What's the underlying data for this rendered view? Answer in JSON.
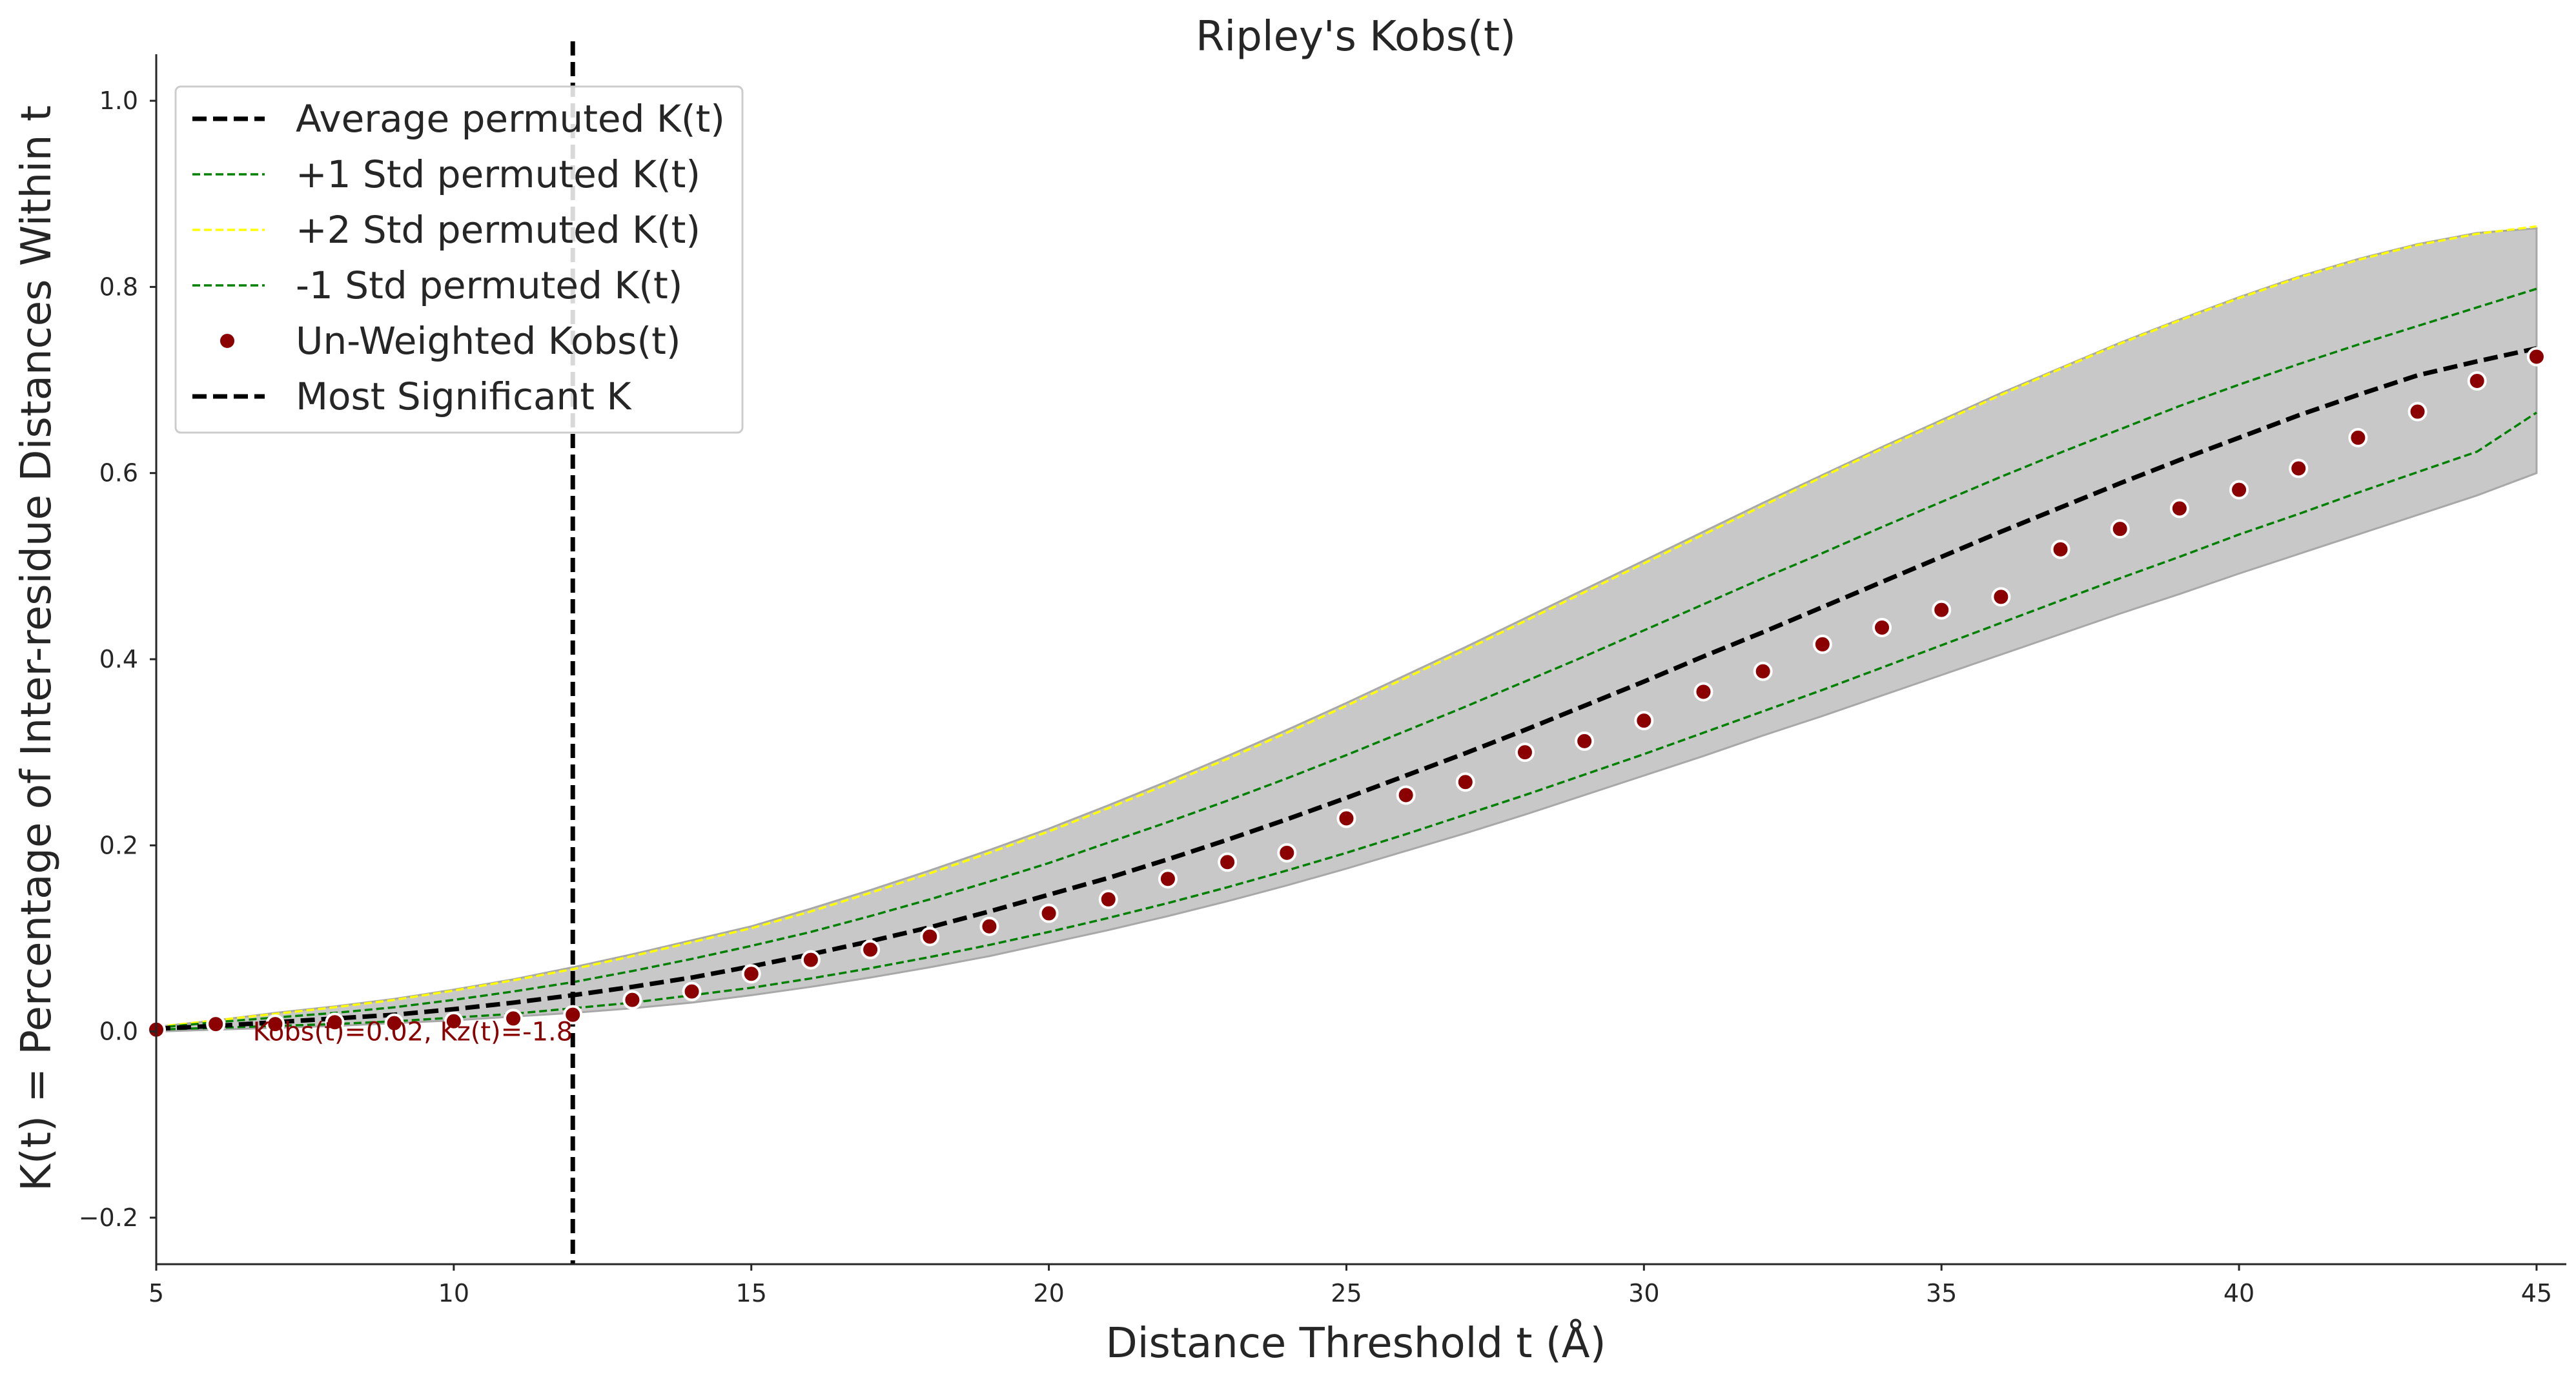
{
  "chart_data": {
    "type": "line",
    "title": "Ripley's Kobs(t)",
    "xlabel": "Distance Threshold t (Å)",
    "ylabel": "K(t) = Percentage of Inter-residue Distances Within t",
    "xlim": [
      5,
      45.5
    ],
    "ylim": [
      -0.25,
      1.05
    ],
    "xticks": [
      5,
      10,
      15,
      20,
      25,
      30,
      35,
      40,
      45
    ],
    "yticks": [
      -0.2,
      0.0,
      0.2,
      0.4,
      0.6,
      0.8,
      1.0
    ],
    "ytick_labels": [
      "−0.2",
      "0.0",
      "0.2",
      "0.4",
      "0.6",
      "0.8",
      "1.0"
    ],
    "grid": false,
    "legend_position": "upper left",
    "x": [
      5,
      6,
      7,
      8,
      9,
      10,
      11,
      12,
      13,
      14,
      15,
      16,
      17,
      18,
      19,
      20,
      21,
      22,
      23,
      24,
      25,
      26,
      27,
      28,
      29,
      30,
      31,
      32,
      33,
      34,
      35,
      36,
      37,
      38,
      39,
      40,
      41,
      42,
      43,
      44,
      45
    ],
    "band": {
      "upper": [
        0.005,
        0.012,
        0.02,
        0.027,
        0.035,
        0.045,
        0.056,
        0.069,
        0.083,
        0.098,
        0.113,
        0.132,
        0.152,
        0.173,
        0.195,
        0.218,
        0.243,
        0.269,
        0.296,
        0.324,
        0.353,
        0.383,
        0.413,
        0.444,
        0.475,
        0.506,
        0.537,
        0.568,
        0.598,
        0.628,
        0.657,
        0.686,
        0.713,
        0.74,
        0.765,
        0.789,
        0.811,
        0.83,
        0.846,
        0.858,
        0.863
      ],
      "lower": [
        0.0,
        0.002,
        0.004,
        0.006,
        0.009,
        0.012,
        0.016,
        0.02,
        0.025,
        0.031,
        0.039,
        0.048,
        0.058,
        0.069,
        0.081,
        0.095,
        0.109,
        0.124,
        0.14,
        0.157,
        0.175,
        0.194,
        0.213,
        0.233,
        0.254,
        0.275,
        0.296,
        0.318,
        0.339,
        0.361,
        0.383,
        0.405,
        0.427,
        0.449,
        0.47,
        0.492,
        0.513,
        0.534,
        0.555,
        0.576,
        0.6
      ]
    },
    "series": [
      {
        "name": "Average permuted K(t)",
        "style": "dashed",
        "color": "#000000",
        "values": [
          0.003,
          0.006,
          0.01,
          0.014,
          0.018,
          0.024,
          0.031,
          0.039,
          0.048,
          0.058,
          0.07,
          0.083,
          0.097,
          0.112,
          0.129,
          0.147,
          0.165,
          0.185,
          0.206,
          0.228,
          0.251,
          0.275,
          0.299,
          0.324,
          0.35,
          0.376,
          0.403,
          0.429,
          0.456,
          0.483,
          0.51,
          0.537,
          0.563,
          0.589,
          0.614,
          0.638,
          0.662,
          0.684,
          0.705,
          0.72,
          0.734
        ]
      },
      {
        "name": "+1 Std permuted K(t)",
        "style": "dashed",
        "color": "#008000",
        "values": [
          0.004,
          0.01,
          0.015,
          0.02,
          0.026,
          0.034,
          0.043,
          0.053,
          0.065,
          0.078,
          0.092,
          0.107,
          0.124,
          0.142,
          0.161,
          0.181,
          0.203,
          0.225,
          0.248,
          0.272,
          0.297,
          0.323,
          0.349,
          0.376,
          0.403,
          0.431,
          0.459,
          0.487,
          0.514,
          0.542,
          0.569,
          0.596,
          0.622,
          0.647,
          0.672,
          0.695,
          0.717,
          0.738,
          0.758,
          0.778,
          0.798
        ]
      },
      {
        "name": "+2 Std permuted K(t)",
        "style": "dashed",
        "color": "#ffff00",
        "values": [
          0.005,
          0.012,
          0.019,
          0.026,
          0.034,
          0.044,
          0.055,
          0.067,
          0.081,
          0.096,
          0.111,
          0.129,
          0.149,
          0.17,
          0.192,
          0.215,
          0.24,
          0.266,
          0.293,
          0.321,
          0.35,
          0.38,
          0.41,
          0.441,
          0.472,
          0.503,
          0.534,
          0.565,
          0.596,
          0.626,
          0.655,
          0.684,
          0.712,
          0.739,
          0.764,
          0.788,
          0.81,
          0.829,
          0.845,
          0.857,
          0.865
        ]
      },
      {
        "name": "-1 Std permuted K(t)",
        "style": "dashed",
        "color": "#008000",
        "values": [
          0.002,
          0.004,
          0.006,
          0.008,
          0.011,
          0.015,
          0.019,
          0.025,
          0.031,
          0.039,
          0.047,
          0.057,
          0.068,
          0.08,
          0.093,
          0.107,
          0.122,
          0.138,
          0.155,
          0.173,
          0.192,
          0.212,
          0.233,
          0.254,
          0.276,
          0.298,
          0.321,
          0.344,
          0.367,
          0.391,
          0.415,
          0.439,
          0.463,
          0.487,
          0.51,
          0.534,
          0.556,
          0.579,
          0.601,
          0.623,
          0.665
        ]
      },
      {
        "name": "Un-Weighted Kobs(t)",
        "style": "markers",
        "color": "#8b0000",
        "values": [
          0.002,
          0.008,
          0.008,
          0.01,
          0.009,
          0.011,
          0.014,
          0.018,
          0.034,
          0.043,
          0.062,
          0.077,
          0.088,
          0.102,
          0.113,
          0.127,
          0.142,
          0.164,
          0.182,
          0.192,
          0.229,
          0.254,
          0.268,
          0.3,
          0.312,
          0.334,
          0.365,
          0.387,
          0.416,
          0.434,
          0.453,
          0.467,
          0.518,
          0.54,
          0.562,
          0.582,
          0.605,
          0.638,
          0.666,
          0.699,
          0.725
        ]
      },
      {
        "name": "Most Significant K",
        "style": "dashed-vertical",
        "color": "#000000",
        "x_value": 12
      }
    ],
    "annotation": {
      "text": "Kobs(t)=0.02, Kz(t)=-1.8",
      "x": 12,
      "y": 0.0,
      "anchor": "end",
      "color": "#8b0000"
    }
  }
}
